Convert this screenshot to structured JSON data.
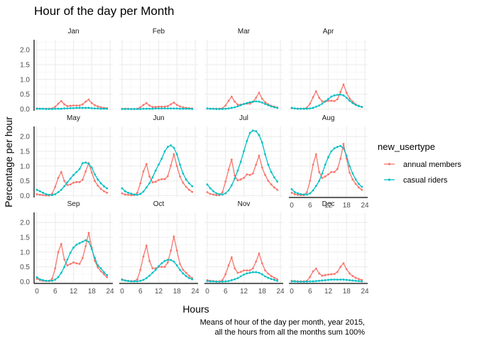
{
  "chart_data": {
    "type": "line",
    "title": "Hour of the day per Month",
    "xlabel": "Hours",
    "ylabel": "Percentage per hour",
    "caption": [
      "Means of hour of the day per month, year 2015,",
      "all the hours from all the months sum 100%"
    ],
    "legend": {
      "title": "new_usertype",
      "position": "right",
      "entries": [
        "annual members",
        "casual riders"
      ]
    },
    "colors": {
      "annual members": "#F8766D",
      "casual riders": "#00BFC4"
    },
    "x_ticks": [
      0,
      6,
      12,
      18,
      24
    ],
    "y_ticks": [
      0.0,
      0.5,
      1.0,
      1.5,
      2.0
    ],
    "y_tick_labels": [
      "0.0",
      "0.5",
      "1.0",
      "1.5",
      "2.0"
    ],
    "xlim": [
      0,
      24
    ],
    "ylim": [
      -0.06,
      2.34
    ],
    "grid": true,
    "x": [
      0,
      1,
      2,
      3,
      4,
      5,
      6,
      7,
      8,
      9,
      10,
      11,
      12,
      13,
      14,
      15,
      16,
      17,
      18,
      19,
      20,
      21,
      22,
      23
    ],
    "panels": [
      {
        "month": "Jan",
        "annual": [
          0.02,
          0.01,
          0.01,
          0.01,
          0.01,
          0.02,
          0.08,
          0.18,
          0.27,
          0.16,
          0.1,
          0.11,
          0.12,
          0.12,
          0.12,
          0.16,
          0.25,
          0.32,
          0.2,
          0.13,
          0.09,
          0.06,
          0.04,
          0.03
        ],
        "casual": [
          0.01,
          0.01,
          0.01,
          0.0,
          0.0,
          0.0,
          0.01,
          0.01,
          0.01,
          0.02,
          0.02,
          0.03,
          0.03,
          0.04,
          0.04,
          0.04,
          0.04,
          0.04,
          0.03,
          0.02,
          0.02,
          0.01,
          0.01,
          0.01
        ]
      },
      {
        "month": "Feb",
        "annual": [
          0.01,
          0.01,
          0.01,
          0.0,
          0.0,
          0.01,
          0.06,
          0.14,
          0.2,
          0.12,
          0.07,
          0.07,
          0.08,
          0.08,
          0.08,
          0.1,
          0.16,
          0.22,
          0.14,
          0.09,
          0.06,
          0.04,
          0.03,
          0.02
        ],
        "casual": [
          0.0,
          0.0,
          0.0,
          0.0,
          0.0,
          0.0,
          0.0,
          0.01,
          0.01,
          0.01,
          0.01,
          0.02,
          0.02,
          0.02,
          0.02,
          0.02,
          0.02,
          0.02,
          0.02,
          0.01,
          0.01,
          0.01,
          0.01,
          0.0
        ]
      },
      {
        "month": "Mar",
        "annual": [
          0.02,
          0.01,
          0.01,
          0.01,
          0.01,
          0.03,
          0.12,
          0.28,
          0.42,
          0.25,
          0.15,
          0.15,
          0.17,
          0.18,
          0.18,
          0.24,
          0.38,
          0.55,
          0.35,
          0.23,
          0.16,
          0.11,
          0.08,
          0.05
        ],
        "casual": [
          0.02,
          0.01,
          0.01,
          0.0,
          0.0,
          0.0,
          0.01,
          0.02,
          0.04,
          0.06,
          0.09,
          0.13,
          0.17,
          0.2,
          0.23,
          0.25,
          0.26,
          0.25,
          0.22,
          0.17,
          0.13,
          0.09,
          0.06,
          0.04
        ]
      },
      {
        "month": "Apr",
        "annual": [
          0.03,
          0.02,
          0.01,
          0.01,
          0.01,
          0.05,
          0.18,
          0.4,
          0.6,
          0.38,
          0.26,
          0.25,
          0.28,
          0.28,
          0.27,
          0.33,
          0.58,
          0.83,
          0.55,
          0.36,
          0.25,
          0.16,
          0.11,
          0.07
        ],
        "casual": [
          0.04,
          0.02,
          0.01,
          0.01,
          0.01,
          0.01,
          0.02,
          0.04,
          0.08,
          0.12,
          0.18,
          0.26,
          0.34,
          0.42,
          0.46,
          0.48,
          0.49,
          0.46,
          0.38,
          0.28,
          0.2,
          0.14,
          0.1,
          0.07
        ]
      },
      {
        "month": "May",
        "annual": [
          0.05,
          0.03,
          0.02,
          0.01,
          0.01,
          0.07,
          0.3,
          0.6,
          0.8,
          0.5,
          0.36,
          0.38,
          0.44,
          0.46,
          0.46,
          0.54,
          0.82,
          1.1,
          0.78,
          0.5,
          0.34,
          0.23,
          0.15,
          0.1
        ],
        "casual": [
          0.2,
          0.15,
          0.1,
          0.05,
          0.03,
          0.02,
          0.05,
          0.12,
          0.2,
          0.32,
          0.45,
          0.58,
          0.7,
          0.8,
          0.9,
          1.1,
          1.12,
          1.08,
          0.95,
          0.72,
          0.55,
          0.42,
          0.32,
          0.25
        ]
      },
      {
        "month": "Jun",
        "annual": [
          0.08,
          0.04,
          0.03,
          0.02,
          0.02,
          0.1,
          0.42,
          0.82,
          1.07,
          0.65,
          0.45,
          0.47,
          0.53,
          0.56,
          0.56,
          0.66,
          1.02,
          1.4,
          1.0,
          0.65,
          0.44,
          0.3,
          0.2,
          0.13
        ],
        "casual": [
          0.25,
          0.15,
          0.1,
          0.07,
          0.04,
          0.03,
          0.06,
          0.14,
          0.28,
          0.42,
          0.62,
          0.85,
          1.05,
          1.25,
          1.5,
          1.65,
          1.7,
          1.62,
          1.4,
          1.05,
          0.75,
          0.55,
          0.42,
          0.32
        ]
      },
      {
        "month": "Jul",
        "annual": [
          0.12,
          0.06,
          0.04,
          0.02,
          0.02,
          0.12,
          0.48,
          0.88,
          1.22,
          0.68,
          0.52,
          0.55,
          0.6,
          0.72,
          0.7,
          0.75,
          1.05,
          1.35,
          0.95,
          0.7,
          0.5,
          0.38,
          0.28,
          0.2
        ],
        "casual": [
          0.38,
          0.25,
          0.15,
          0.08,
          0.05,
          0.04,
          0.08,
          0.18,
          0.35,
          0.58,
          0.85,
          1.15,
          1.5,
          1.85,
          2.12,
          2.2,
          2.18,
          2.05,
          1.8,
          1.4,
          1.05,
          0.8,
          0.62,
          0.48
        ]
      },
      {
        "month": "Aug",
        "annual": [
          0.1,
          0.05,
          0.03,
          0.02,
          0.02,
          0.12,
          0.5,
          1.05,
          1.4,
          0.8,
          0.6,
          0.65,
          0.72,
          0.8,
          0.8,
          0.9,
          1.25,
          1.75,
          1.25,
          0.78,
          0.55,
          0.4,
          0.28,
          0.2
        ],
        "casual": [
          0.22,
          0.12,
          0.08,
          0.05,
          0.04,
          0.04,
          0.08,
          0.18,
          0.33,
          0.5,
          0.75,
          1.05,
          1.3,
          1.5,
          1.6,
          1.65,
          1.68,
          1.6,
          1.35,
          1.0,
          0.75,
          0.55,
          0.4,
          0.3
        ]
      },
      {
        "month": "Sep",
        "annual": [
          0.1,
          0.05,
          0.03,
          0.02,
          0.02,
          0.1,
          0.45,
          1.0,
          1.27,
          0.75,
          0.55,
          0.6,
          0.65,
          0.62,
          0.6,
          0.8,
          1.2,
          1.65,
          1.15,
          0.7,
          0.48,
          0.35,
          0.25,
          0.15
        ],
        "casual": [
          0.15,
          0.08,
          0.05,
          0.03,
          0.03,
          0.03,
          0.07,
          0.15,
          0.3,
          0.5,
          0.75,
          0.98,
          1.15,
          1.25,
          1.3,
          1.35,
          1.4,
          1.35,
          1.1,
          0.8,
          0.55,
          0.45,
          0.32,
          0.22
        ]
      },
      {
        "month": "Oct",
        "annual": [
          0.08,
          0.04,
          0.03,
          0.02,
          0.02,
          0.08,
          0.4,
          0.85,
          1.22,
          0.7,
          0.45,
          0.45,
          0.5,
          0.5,
          0.5,
          0.65,
          1.05,
          1.53,
          1.05,
          0.6,
          0.4,
          0.3,
          0.2,
          0.12
        ],
        "casual": [
          0.06,
          0.04,
          0.02,
          0.01,
          0.01,
          0.01,
          0.03,
          0.06,
          0.12,
          0.2,
          0.3,
          0.4,
          0.52,
          0.62,
          0.7,
          0.74,
          0.73,
          0.68,
          0.55,
          0.4,
          0.28,
          0.19,
          0.12,
          0.08
        ]
      },
      {
        "month": "Nov",
        "annual": [
          0.05,
          0.03,
          0.02,
          0.01,
          0.01,
          0.05,
          0.25,
          0.55,
          0.82,
          0.45,
          0.3,
          0.33,
          0.38,
          0.38,
          0.38,
          0.45,
          0.68,
          0.95,
          0.62,
          0.38,
          0.27,
          0.19,
          0.13,
          0.08
        ],
        "casual": [
          0.02,
          0.01,
          0.01,
          0.0,
          0.0,
          0.0,
          0.01,
          0.02,
          0.05,
          0.08,
          0.12,
          0.18,
          0.24,
          0.28,
          0.3,
          0.32,
          0.32,
          0.3,
          0.25,
          0.18,
          0.13,
          0.09,
          0.06,
          0.03
        ]
      },
      {
        "month": "Dec",
        "annual": [
          0.03,
          0.02,
          0.01,
          0.01,
          0.01,
          0.03,
          0.16,
          0.35,
          0.44,
          0.28,
          0.2,
          0.22,
          0.24,
          0.25,
          0.26,
          0.33,
          0.5,
          0.62,
          0.42,
          0.28,
          0.19,
          0.13,
          0.09,
          0.06
        ],
        "casual": [
          0.01,
          0.01,
          0.0,
          0.0,
          0.0,
          0.0,
          0.01,
          0.01,
          0.02,
          0.03,
          0.04,
          0.05,
          0.06,
          0.07,
          0.07,
          0.07,
          0.07,
          0.07,
          0.06,
          0.05,
          0.04,
          0.03,
          0.02,
          0.01
        ]
      }
    ]
  }
}
